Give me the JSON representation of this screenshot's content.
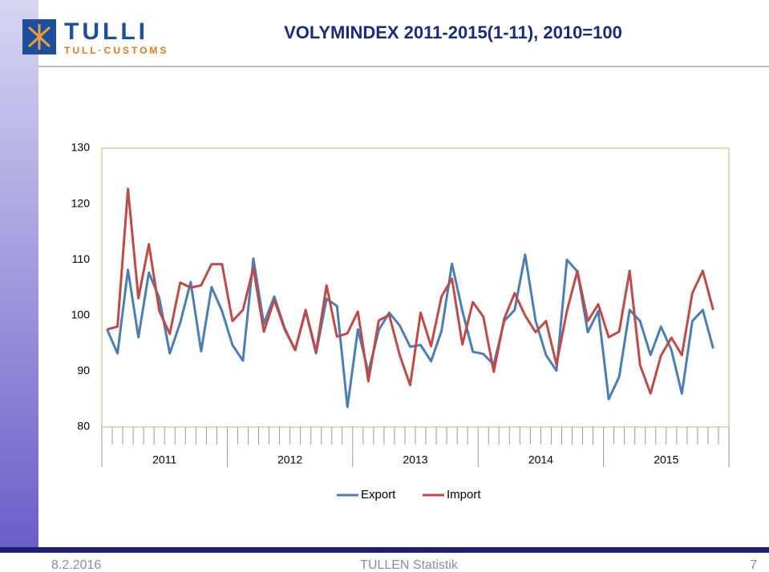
{
  "header": {
    "logo_name": "TULLI",
    "logo_tagline": "TULL·CUSTOMS"
  },
  "chart_data": {
    "type": "line",
    "title": "VOLYMINDEX 2011-2015(1-11), 2010=100",
    "categories": [
      null,
      null,
      null,
      null,
      null,
      null,
      null,
      null,
      null,
      null,
      null,
      null,
      null,
      null,
      null,
      null,
      null,
      null,
      null,
      null,
      null,
      null,
      null,
      null,
      null,
      null,
      null,
      null,
      null,
      null,
      null,
      null,
      null,
      null,
      null,
      null,
      null,
      null,
      null,
      null,
      null,
      null,
      null,
      null,
      null,
      null,
      null,
      null,
      null,
      null,
      null,
      null,
      null,
      null,
      null,
      null,
      null,
      null,
      null
    ],
    "year_labels": [
      "2011",
      "2012",
      "2013",
      "2014",
      "2015"
    ],
    "ylim": [
      80,
      130
    ],
    "yticks": [
      80,
      90,
      100,
      110,
      120,
      130
    ],
    "grid": false,
    "legend": "bottom",
    "series": [
      {
        "name": "Export",
        "color": "#4a7eb5",
        "values": [
          97.5,
          93.2,
          108.2,
          96.1,
          107.7,
          103.1,
          93.2,
          98.7,
          106,
          93.6,
          105.1,
          100.8,
          94.7,
          91.9,
          110.2,
          98.5,
          103.4,
          97.7,
          93.8,
          100.8,
          93.2,
          103,
          101.7,
          83.6,
          97.5,
          89.8,
          97.4,
          100.5,
          98.2,
          94.4,
          94.7,
          91.8,
          97.2,
          109.3,
          100.8,
          93.5,
          93.1,
          91.2,
          99,
          101,
          110.9,
          99.1,
          92.9,
          90.1,
          110,
          107.9,
          97,
          100.8,
          85,
          89,
          101,
          99,
          92.9,
          98,
          93.8,
          86,
          99,
          101,
          94.1
        ]
      },
      {
        "name": "Import",
        "color": "#be4b48",
        "values": [
          97.5,
          98,
          122.7,
          103.1,
          112.8,
          100.8,
          96.7,
          105.9,
          105,
          105.4,
          109.2,
          109.2,
          99,
          101,
          108.5,
          97.1,
          102.8,
          97.5,
          93.8,
          101,
          93.5,
          105.4,
          96.2,
          96.8,
          100.7,
          88.2,
          99.1,
          100.1,
          92.9,
          87.5,
          100.5,
          94.5,
          103.4,
          106.6,
          94.8,
          102.4,
          99.8,
          89.9,
          99.4,
          104,
          100,
          97,
          99,
          91.2,
          100.8,
          108,
          99,
          102,
          96.1,
          97.1,
          108,
          91.1,
          86,
          92.8,
          96,
          92.9,
          104,
          108,
          101
        ]
      }
    ]
  },
  "footer": {
    "date": "8.2.2016",
    "source": "TULLEN Statistik",
    "page": "7"
  }
}
